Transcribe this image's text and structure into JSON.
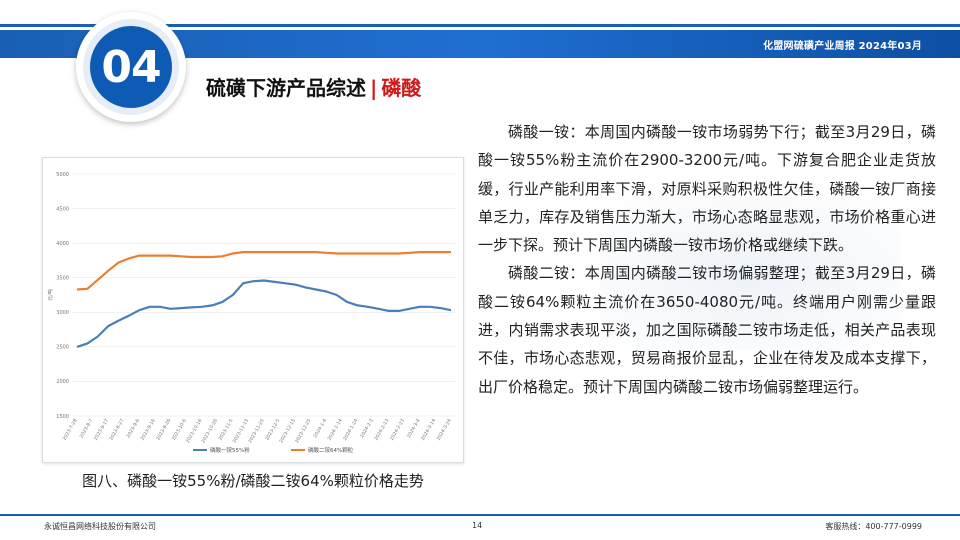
{
  "header": {
    "right_text": "化盟网硫磺产业周报   2024年03月",
    "badge_number": "04",
    "section_title": "硫磺下游产品综述",
    "separator": "|",
    "section_subtitle": "磷酸"
  },
  "colors": {
    "brand_blue": "#1a5fb4",
    "accent_red": "#d01818",
    "series_blue": "#4a7fb8",
    "series_orange": "#ed7d31"
  },
  "chart_caption": "图八、磷酸一铵55%粉/磷酸二铵64%颗粒价格走势",
  "chart_data": {
    "type": "line",
    "ylim": [
      1500,
      5000
    ],
    "yticks": [
      "1500",
      "2000",
      "2500",
      "3000",
      "3500",
      "4000",
      "4500",
      "5000"
    ],
    "ylabel": "元/吨",
    "x_tick_labels": [
      "2023-7-28",
      "2023-8-7",
      "2023-8-17",
      "2023-8-27",
      "2023-9-6",
      "2023-9-16",
      "2023-9-26",
      "2023-10-6",
      "2023-10-16",
      "2023-10-26",
      "2023-11-5",
      "2023-11-15",
      "2023-11-25",
      "2023-12-5",
      "2023-12-15",
      "2023-12-25",
      "2024-1-4",
      "2024-1-14",
      "2024-1-24",
      "2024-2-3",
      "2024-2-13",
      "2024-2-23",
      "2024-3-4",
      "2024-3-14",
      "2024-3-24"
    ],
    "legend_position": "bottom",
    "series": [
      {
        "name": "磷酸一铵55%粉",
        "color": "#4a7fb8",
        "values": [
          2500,
          2550,
          2650,
          2800,
          2880,
          2950,
          3030,
          3080,
          3080,
          3050,
          3060,
          3070,
          3080,
          3100,
          3150,
          3250,
          3420,
          3450,
          3460,
          3440,
          3420,
          3400,
          3360,
          3330,
          3300,
          3250,
          3150,
          3100,
          3080,
          3050,
          3020,
          3020,
          3050,
          3080,
          3080,
          3060,
          3030
        ]
      },
      {
        "name": "磷酸二铵64%颗粒",
        "color": "#ed7d31",
        "values": [
          3330,
          3340,
          3470,
          3600,
          3720,
          3780,
          3820,
          3820,
          3820,
          3820,
          3810,
          3800,
          3800,
          3800,
          3810,
          3850,
          3870,
          3870,
          3870,
          3870,
          3870,
          3870,
          3870,
          3870,
          3860,
          3850,
          3850,
          3850,
          3850,
          3850,
          3850,
          3850,
          3860,
          3870,
          3870,
          3870,
          3870
        ]
      }
    ]
  },
  "paragraphs": [
    "磷酸一铵：本周国内磷酸一铵市场弱势下行；截至3月29日，磷酸一铵55%粉主流价在2900-3200元/吨。下游复合肥企业走货放缓，行业产能利用率下滑，对原料采购积极性欠佳，磷酸一铵厂商接单乏力，库存及销售压力渐大，市场心态略显悲观，市场价格重心进一步下探。预计下周国内磷酸一铵市场价格或继续下跌。",
    "磷酸二铵：本周国内磷酸二铵市场偏弱整理；截至3月29日，磷酸二铵64%颗粒主流价在3650-4080元/吨。终端用户刚需少量跟进，内销需求表现平淡，加之国际磷酸二铵市场走低，相关产品表现不佳，市场心态悲观，贸易商报价显乱，企业在待发及成本支撑下，出厂价格稳定。预计下周国内磷酸二铵市场偏弱整理运行。"
  ],
  "footer": {
    "company": "永诚恒昌网络科技股份有限公司",
    "page": "14",
    "hotline": "客服热线：400-777-0999"
  }
}
